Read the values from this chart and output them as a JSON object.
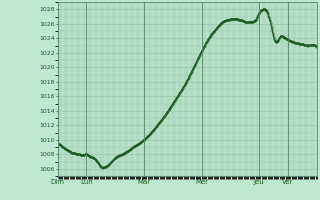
{
  "background_color": "#c0e8d0",
  "plot_bg_color": "#c0e8d0",
  "line_color": "#1a5c20",
  "grid_color": "#98c8a8",
  "tick_color": "#1a5c20",
  "ylim": [
    1005.0,
    1029.0
  ],
  "yticks": [
    1006,
    1008,
    1010,
    1012,
    1014,
    1016,
    1018,
    1020,
    1022,
    1024,
    1026,
    1028
  ],
  "xtick_labels": [
    "Dim",
    "Lun",
    "Mar",
    "Mer",
    "Jeu",
    "Ver"
  ],
  "xtick_positions": [
    0.0,
    0.111,
    0.333,
    0.556,
    0.778,
    0.889
  ],
  "total_points": 216,
  "figsize": [
    3.2,
    2.0
  ],
  "dpi": 100,
  "keypoints": [
    [
      0,
      1009.5
    ],
    [
      3,
      1009.2
    ],
    [
      6,
      1008.8
    ],
    [
      9,
      1008.5
    ],
    [
      12,
      1008.2
    ],
    [
      15,
      1008.1
    ],
    [
      18,
      1008.0
    ],
    [
      21,
      1007.9
    ],
    [
      24,
      1008.0
    ],
    [
      27,
      1007.7
    ],
    [
      30,
      1007.5
    ],
    [
      33,
      1007.0
    ],
    [
      36,
      1006.3
    ],
    [
      39,
      1006.2
    ],
    [
      42,
      1006.5
    ],
    [
      45,
      1007.0
    ],
    [
      48,
      1007.5
    ],
    [
      51,
      1007.8
    ],
    [
      54,
      1008.0
    ],
    [
      57,
      1008.3
    ],
    [
      60,
      1008.6
    ],
    [
      63,
      1009.0
    ],
    [
      66,
      1009.3
    ],
    [
      72,
      1010.0
    ],
    [
      78,
      1011.0
    ],
    [
      84,
      1012.2
    ],
    [
      90,
      1013.5
    ],
    [
      96,
      1015.0
    ],
    [
      102,
      1016.5
    ],
    [
      108,
      1018.2
    ],
    [
      114,
      1020.2
    ],
    [
      120,
      1022.2
    ],
    [
      126,
      1024.0
    ],
    [
      132,
      1025.3
    ],
    [
      138,
      1026.3
    ],
    [
      141,
      1026.5
    ],
    [
      144,
      1026.6
    ],
    [
      147,
      1026.7
    ],
    [
      150,
      1026.6
    ],
    [
      153,
      1026.5
    ],
    [
      156,
      1026.3
    ],
    [
      159,
      1026.2
    ],
    [
      162,
      1026.3
    ],
    [
      165,
      1026.5
    ],
    [
      168,
      1027.5
    ],
    [
      170,
      1027.9
    ],
    [
      172,
      1028.0
    ],
    [
      174,
      1027.8
    ],
    [
      176,
      1027.0
    ],
    [
      178,
      1025.8
    ],
    [
      180,
      1024.2
    ],
    [
      182,
      1023.5
    ],
    [
      184,
      1023.8
    ],
    [
      186,
      1024.3
    ],
    [
      188,
      1024.2
    ],
    [
      190,
      1024.0
    ],
    [
      192,
      1023.8
    ],
    [
      196,
      1023.5
    ],
    [
      200,
      1023.3
    ],
    [
      204,
      1023.2
    ],
    [
      208,
      1023.0
    ],
    [
      212,
      1023.1
    ],
    [
      216,
      1022.8
    ]
  ]
}
